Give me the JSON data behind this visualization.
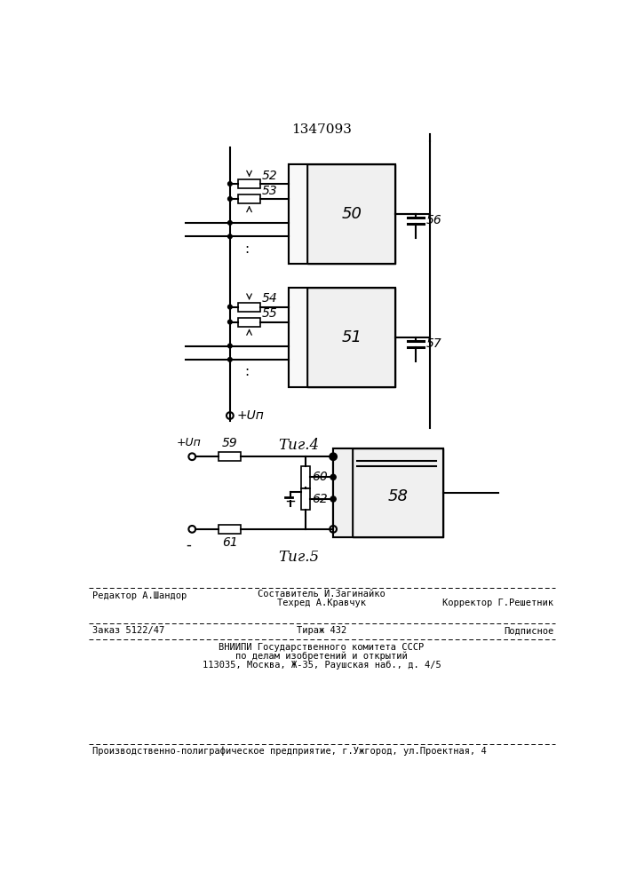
{
  "patent_number": "1347093",
  "fig4_label": "Τиг.4",
  "fig5_label": "Τиг.5",
  "bg_color": "#ffffff",
  "line_color": "#000000",
  "text_color": "#000000"
}
